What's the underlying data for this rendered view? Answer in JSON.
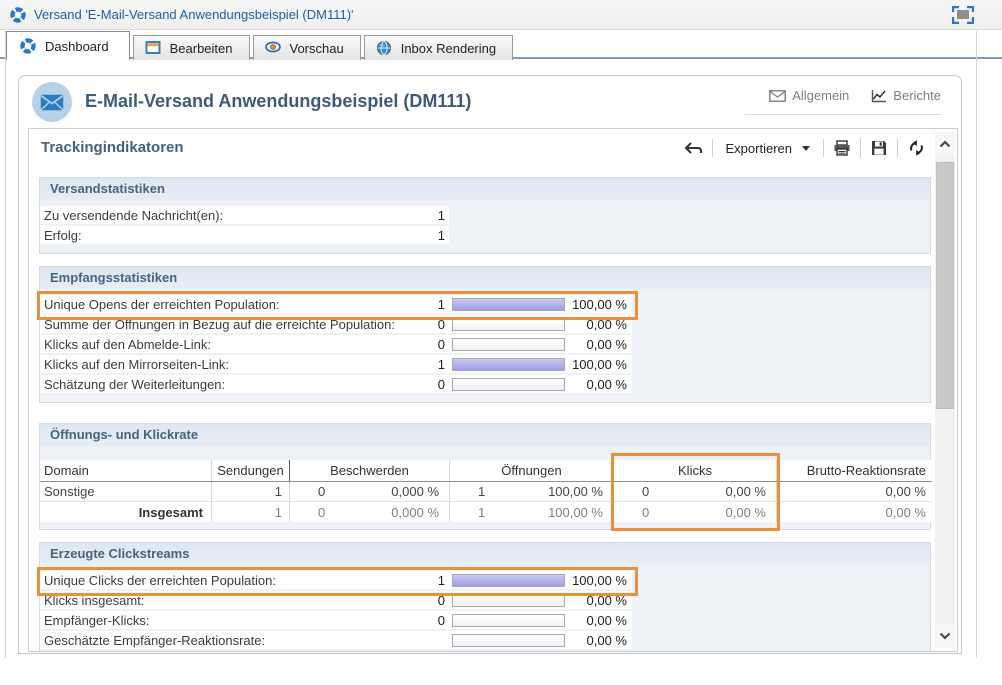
{
  "window_title": "Versand 'E-Mail-Versand Anwendungsbeispiel (DM111)'",
  "tabs": [
    {
      "label": "Dashboard",
      "active": true
    },
    {
      "label": "Bearbeiten",
      "active": false
    },
    {
      "label": "Vorschau",
      "active": false
    },
    {
      "label": "Inbox Rendering",
      "active": false
    }
  ],
  "header": {
    "title": "E-Mail-Versand Anwendungsbeispiel (DM111)",
    "links": [
      {
        "label": "Allgemein"
      },
      {
        "label": "Berichte"
      }
    ]
  },
  "panel": {
    "title": "Trackingindikatoren",
    "toolbar": {
      "export_label": "Exportieren"
    }
  },
  "sections": {
    "versand": {
      "title": "Versandstatistiken",
      "rows": [
        {
          "label": "Zu versendende Nachricht(en):",
          "value": "1"
        },
        {
          "label": "Erfolg:",
          "value": "1"
        }
      ]
    },
    "empfang": {
      "title": "Empfangsstatistiken",
      "rows": [
        {
          "label": "Unique Opens der erreichten Population:",
          "count": "1",
          "bar": 100,
          "pct": "100,00 %",
          "highlight": true
        },
        {
          "label": "Summe der Öffnungen in Bezug auf die erreichte Population:",
          "count": "0",
          "bar": 0,
          "pct": "0,00 %",
          "highlight": false
        },
        {
          "label": "Klicks auf den Abmelde-Link:",
          "count": "0",
          "bar": 0,
          "pct": "0,00 %",
          "highlight": false
        },
        {
          "label": "Klicks auf den Mirrorseiten-Link:",
          "count": "1",
          "bar": 100,
          "pct": "100,00 %",
          "highlight": false
        },
        {
          "label": "Schätzung der Weiterleitungen:",
          "count": "0",
          "bar": 0,
          "pct": "0,00 %",
          "highlight": false
        }
      ]
    },
    "rate_table": {
      "title": "Öffnungs- und Klickrate",
      "columns": [
        "Domain",
        "Sendungen",
        "Beschwerden",
        "Öffnungen",
        "Klicks",
        "Brutto-Reaktionsrate"
      ],
      "rows": [
        {
          "domain": "Sonstige",
          "sendungen": "1",
          "beschwerden_n": "0",
          "beschwerden_pct": "0,000 %",
          "oeffnungen_n": "1",
          "oeffnungen_pct": "100,00 %",
          "klicks_n": "0",
          "klicks_pct": "0,00 %",
          "brutto_pct": "0,00 %"
        },
        {
          "domain": "Insgesamt",
          "sendungen": "1",
          "beschwerden_n": "0",
          "beschwerden_pct": "0,000 %",
          "oeffnungen_n": "1",
          "oeffnungen_pct": "100,00 %",
          "klicks_n": "0",
          "klicks_pct": "0,00 %",
          "brutto_pct": "0,00 %"
        }
      ],
      "highlighted_column": "Klicks"
    },
    "clickstreams": {
      "title": "Erzeugte Clickstreams",
      "rows": [
        {
          "label": "Unique Clicks der erreichten Population:",
          "count": "1",
          "bar": 100,
          "pct": "100,00 %",
          "highlight": true
        },
        {
          "label": "Klicks insgesamt:",
          "count": "0",
          "bar": 0,
          "pct": "0,00 %",
          "highlight": false
        },
        {
          "label": "Empfänger-Klicks:",
          "count": "0",
          "bar": 0,
          "pct": "0,00 %",
          "highlight": false
        },
        {
          "label": "Geschätzte Empfänger-Reaktionsrate:",
          "count": "",
          "bar": 0,
          "pct": "0,00 %",
          "highlight": false
        }
      ]
    }
  },
  "colors": {
    "highlight_orange": "#e8913c",
    "bar_fill": "#a5a5ea",
    "section_header_bg": "#dee7f1",
    "title_blue": "#3d5a7a",
    "link_blue": "#1a5fa8"
  }
}
